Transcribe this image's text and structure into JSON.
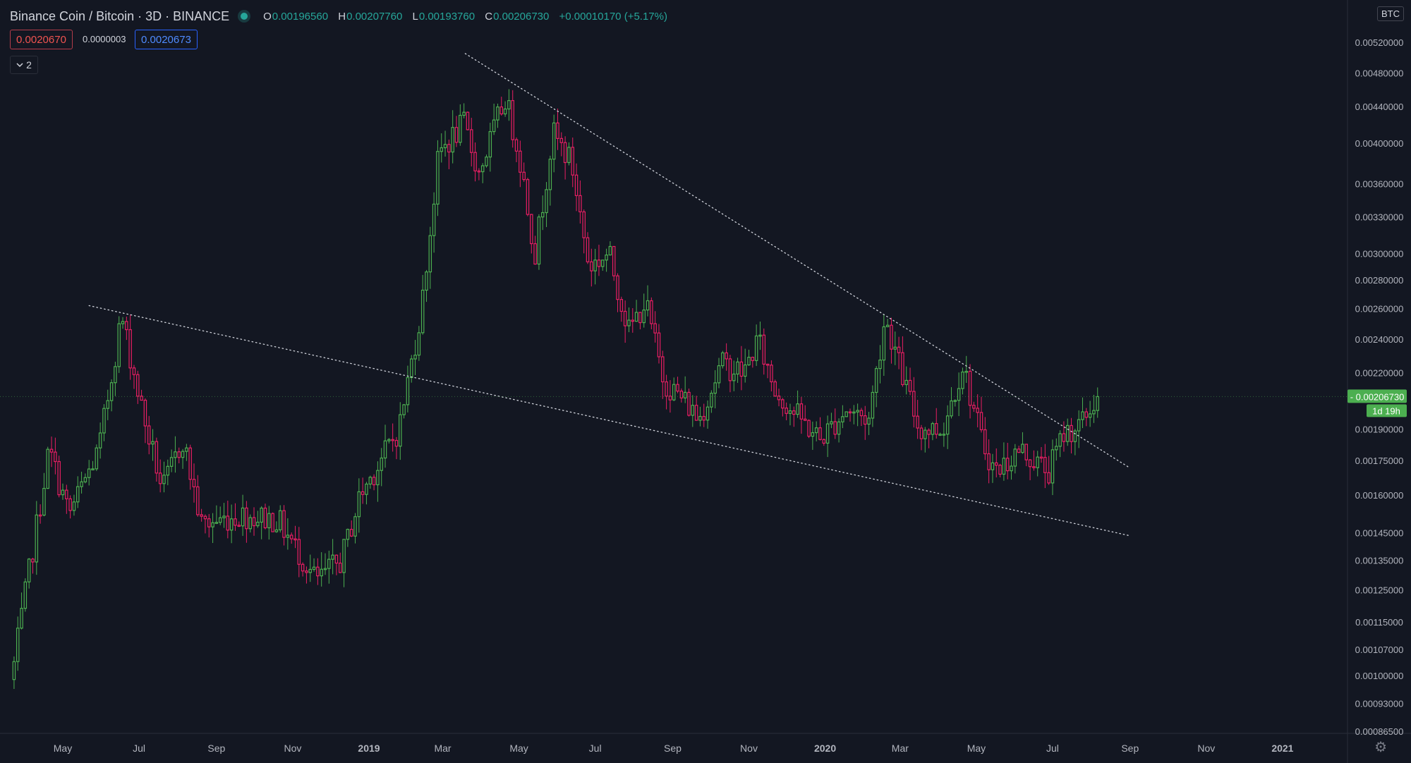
{
  "header": {
    "symbol": "Binance Coin / Bitcoin · 3D · BINANCE",
    "open_label": "O",
    "open": "0.00196560",
    "high_label": "H",
    "high": "0.00207760",
    "low_label": "L",
    "low": "0.00193760",
    "close_label": "C",
    "close": "0.00206730",
    "change": "+0.00010170 (+5.17%)"
  },
  "trade": {
    "sell_price": "0.0020670",
    "spread": "0.0000003",
    "buy_price": "0.0020673"
  },
  "indicators_toggle": {
    "icon": "chevron-down-icon",
    "count": "2"
  },
  "price_axis": {
    "currency_badge": "BTC",
    "ticks": [
      "0.00520000",
      "0.00480000",
      "0.00440000",
      "0.00400000",
      "0.00360000",
      "0.00330000",
      "0.00300000",
      "0.00280000",
      "0.00260000",
      "0.00240000",
      "0.00220000",
      "0.00190000",
      "0.00175000",
      "0.00160000",
      "0.00145000",
      "0.00135000",
      "0.00125000",
      "0.00115000",
      "0.00107000",
      "0.00100000",
      "0.00093000",
      "0.00086500"
    ],
    "last_price_label": "0.00206730",
    "countdown": "1d 19h",
    "settings_icon": "gear-icon"
  },
  "colors": {
    "up": "#26a69a",
    "up_body": "#4caf50",
    "down": "#ef5350",
    "down_body": "#e91e63",
    "bg": "#131722",
    "last_badge": "#4caf50"
  },
  "chart_data": {
    "type": "candlestick",
    "title": "Binance Coin / Bitcoin · 3D · BINANCE",
    "y_scale": "log",
    "ylim": [
      0.000865,
      0.0056
    ],
    "x_ticks": [
      {
        "label": "May",
        "date": "2018-05-01"
      },
      {
        "label": "Jul",
        "date": "2018-07-01"
      },
      {
        "label": "Sep",
        "date": "2018-09-01"
      },
      {
        "label": "Nov",
        "date": "2018-11-01"
      },
      {
        "label": "2019",
        "date": "2019-01-01",
        "bold": true
      },
      {
        "label": "Mar",
        "date": "2019-03-01"
      },
      {
        "label": "May",
        "date": "2019-05-01"
      },
      {
        "label": "Jul",
        "date": "2019-07-01"
      },
      {
        "label": "Sep",
        "date": "2019-09-01"
      },
      {
        "label": "Nov",
        "date": "2019-11-01"
      },
      {
        "label": "2020",
        "date": "2020-01-01",
        "bold": true
      },
      {
        "label": "Mar",
        "date": "2020-03-01"
      },
      {
        "label": "May",
        "date": "2020-05-01"
      },
      {
        "label": "Jul",
        "date": "2020-07-01"
      },
      {
        "label": "Sep",
        "date": "2020-09-01"
      },
      {
        "label": "Nov",
        "date": "2020-11-01"
      },
      {
        "label": "2021",
        "date": "2021-01-01",
        "bold": true
      }
    ],
    "key_points": [
      {
        "date": "2018-03-23",
        "close": 0.00103
      },
      {
        "date": "2018-04-20",
        "close": 0.0018
      },
      {
        "date": "2018-05-06",
        "close": 0.00152
      },
      {
        "date": "2018-05-30",
        "close": 0.0018
      },
      {
        "date": "2018-06-17",
        "close": 0.00255
      },
      {
        "date": "2018-07-05",
        "close": 0.00195
      },
      {
        "date": "2018-07-20",
        "close": 0.00162
      },
      {
        "date": "2018-08-05",
        "close": 0.00185
      },
      {
        "date": "2018-08-20",
        "close": 0.00148
      },
      {
        "date": "2018-09-20",
        "close": 0.00152
      },
      {
        "date": "2018-10-20",
        "close": 0.0015
      },
      {
        "date": "2018-11-20",
        "close": 0.00128
      },
      {
        "date": "2018-12-10",
        "close": 0.00135
      },
      {
        "date": "2018-12-25",
        "close": 0.0016
      },
      {
        "date": "2019-01-25",
        "close": 0.0019
      },
      {
        "date": "2019-02-12",
        "close": 0.0026
      },
      {
        "date": "2019-02-26",
        "close": 0.0039
      },
      {
        "date": "2019-03-18",
        "close": 0.0042
      },
      {
        "date": "2019-03-30",
        "close": 0.0037
      },
      {
        "date": "2019-04-20",
        "close": 0.0045
      },
      {
        "date": "2019-05-01",
        "close": 0.0039
      },
      {
        "date": "2019-05-14",
        "close": 0.003
      },
      {
        "date": "2019-05-28",
        "close": 0.0041
      },
      {
        "date": "2019-06-12",
        "close": 0.0038
      },
      {
        "date": "2019-06-26",
        "close": 0.0029
      },
      {
        "date": "2019-07-12",
        "close": 0.003
      },
      {
        "date": "2019-07-28",
        "close": 0.00245
      },
      {
        "date": "2019-08-10",
        "close": 0.00265
      },
      {
        "date": "2019-08-25",
        "close": 0.00215
      },
      {
        "date": "2019-09-10",
        "close": 0.00205
      },
      {
        "date": "2019-09-22",
        "close": 0.00195
      },
      {
        "date": "2019-10-10",
        "close": 0.00225
      },
      {
        "date": "2019-10-28",
        "close": 0.0022
      },
      {
        "date": "2019-11-08",
        "close": 0.0024
      },
      {
        "date": "2019-11-22",
        "close": 0.0021
      },
      {
        "date": "2019-12-12",
        "close": 0.00195
      },
      {
        "date": "2019-12-28",
        "close": 0.00185
      },
      {
        "date": "2020-01-18",
        "close": 0.002
      },
      {
        "date": "2020-02-05",
        "close": 0.00195
      },
      {
        "date": "2020-02-18",
        "close": 0.00255
      },
      {
        "date": "2020-03-02",
        "close": 0.0022
      },
      {
        "date": "2020-03-16",
        "close": 0.0019
      },
      {
        "date": "2020-04-04",
        "close": 0.0019
      },
      {
        "date": "2020-04-20",
        "close": 0.00225
      },
      {
        "date": "2020-05-05",
        "close": 0.00185
      },
      {
        "date": "2020-05-16",
        "close": 0.0017
      },
      {
        "date": "2020-06-05",
        "close": 0.0018
      },
      {
        "date": "2020-06-28",
        "close": 0.0017
      },
      {
        "date": "2020-07-10",
        "close": 0.00188
      },
      {
        "date": "2020-07-24",
        "close": 0.00192
      },
      {
        "date": "2020-08-06",
        "close": 0.0020673
      }
    ],
    "trendlines": [
      {
        "name": "upper-trendline",
        "from": {
          "date": "2019-03-19",
          "price": 0.00505
        },
        "to": {
          "date": "2020-08-31",
          "price": 0.00172
        }
      },
      {
        "name": "lower-trendline",
        "from": {
          "date": "2018-05-22",
          "price": 0.00262
        },
        "to": {
          "date": "2020-08-31",
          "price": 0.00144
        }
      }
    ]
  }
}
